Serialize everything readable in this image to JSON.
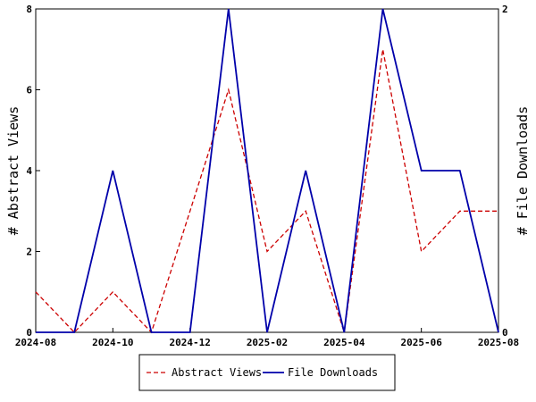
{
  "chart_data": {
    "type": "line",
    "x": [
      "2024-08",
      "2024-09",
      "2024-10",
      "2024-11",
      "2024-12",
      "2025-01",
      "2025-02",
      "2025-03",
      "2025-04",
      "2025-05",
      "2025-06",
      "2025-07",
      "2025-08"
    ],
    "x_tick_labels": [
      "2024-08",
      "2024-10",
      "2024-12",
      "2025-02",
      "2025-04",
      "2025-06",
      "2025-08"
    ],
    "series": [
      {
        "name": "Abstract Views",
        "axis": "left",
        "color": "#cc0000",
        "dash": true,
        "values": [
          1,
          0,
          1,
          0,
          3,
          6,
          2,
          3,
          0,
          7,
          2,
          3,
          3
        ]
      },
      {
        "name": "File Downloads",
        "axis": "right",
        "color": "#0000aa",
        "dash": false,
        "values": [
          0,
          0,
          1,
          0,
          0,
          2,
          0,
          1,
          0,
          2,
          1,
          1,
          0
        ]
      }
    ],
    "ylabel_left": "# Abstract Views",
    "ylabel_right": "# File Downloads",
    "ylim_left": [
      0,
      8
    ],
    "ylim_right": [
      0,
      2
    ],
    "yticks_left": [
      "0",
      "2",
      "4",
      "6",
      "8"
    ],
    "yticks_right": [
      "0",
      "2"
    ],
    "legend_position": "bottom-center",
    "grid": false
  }
}
